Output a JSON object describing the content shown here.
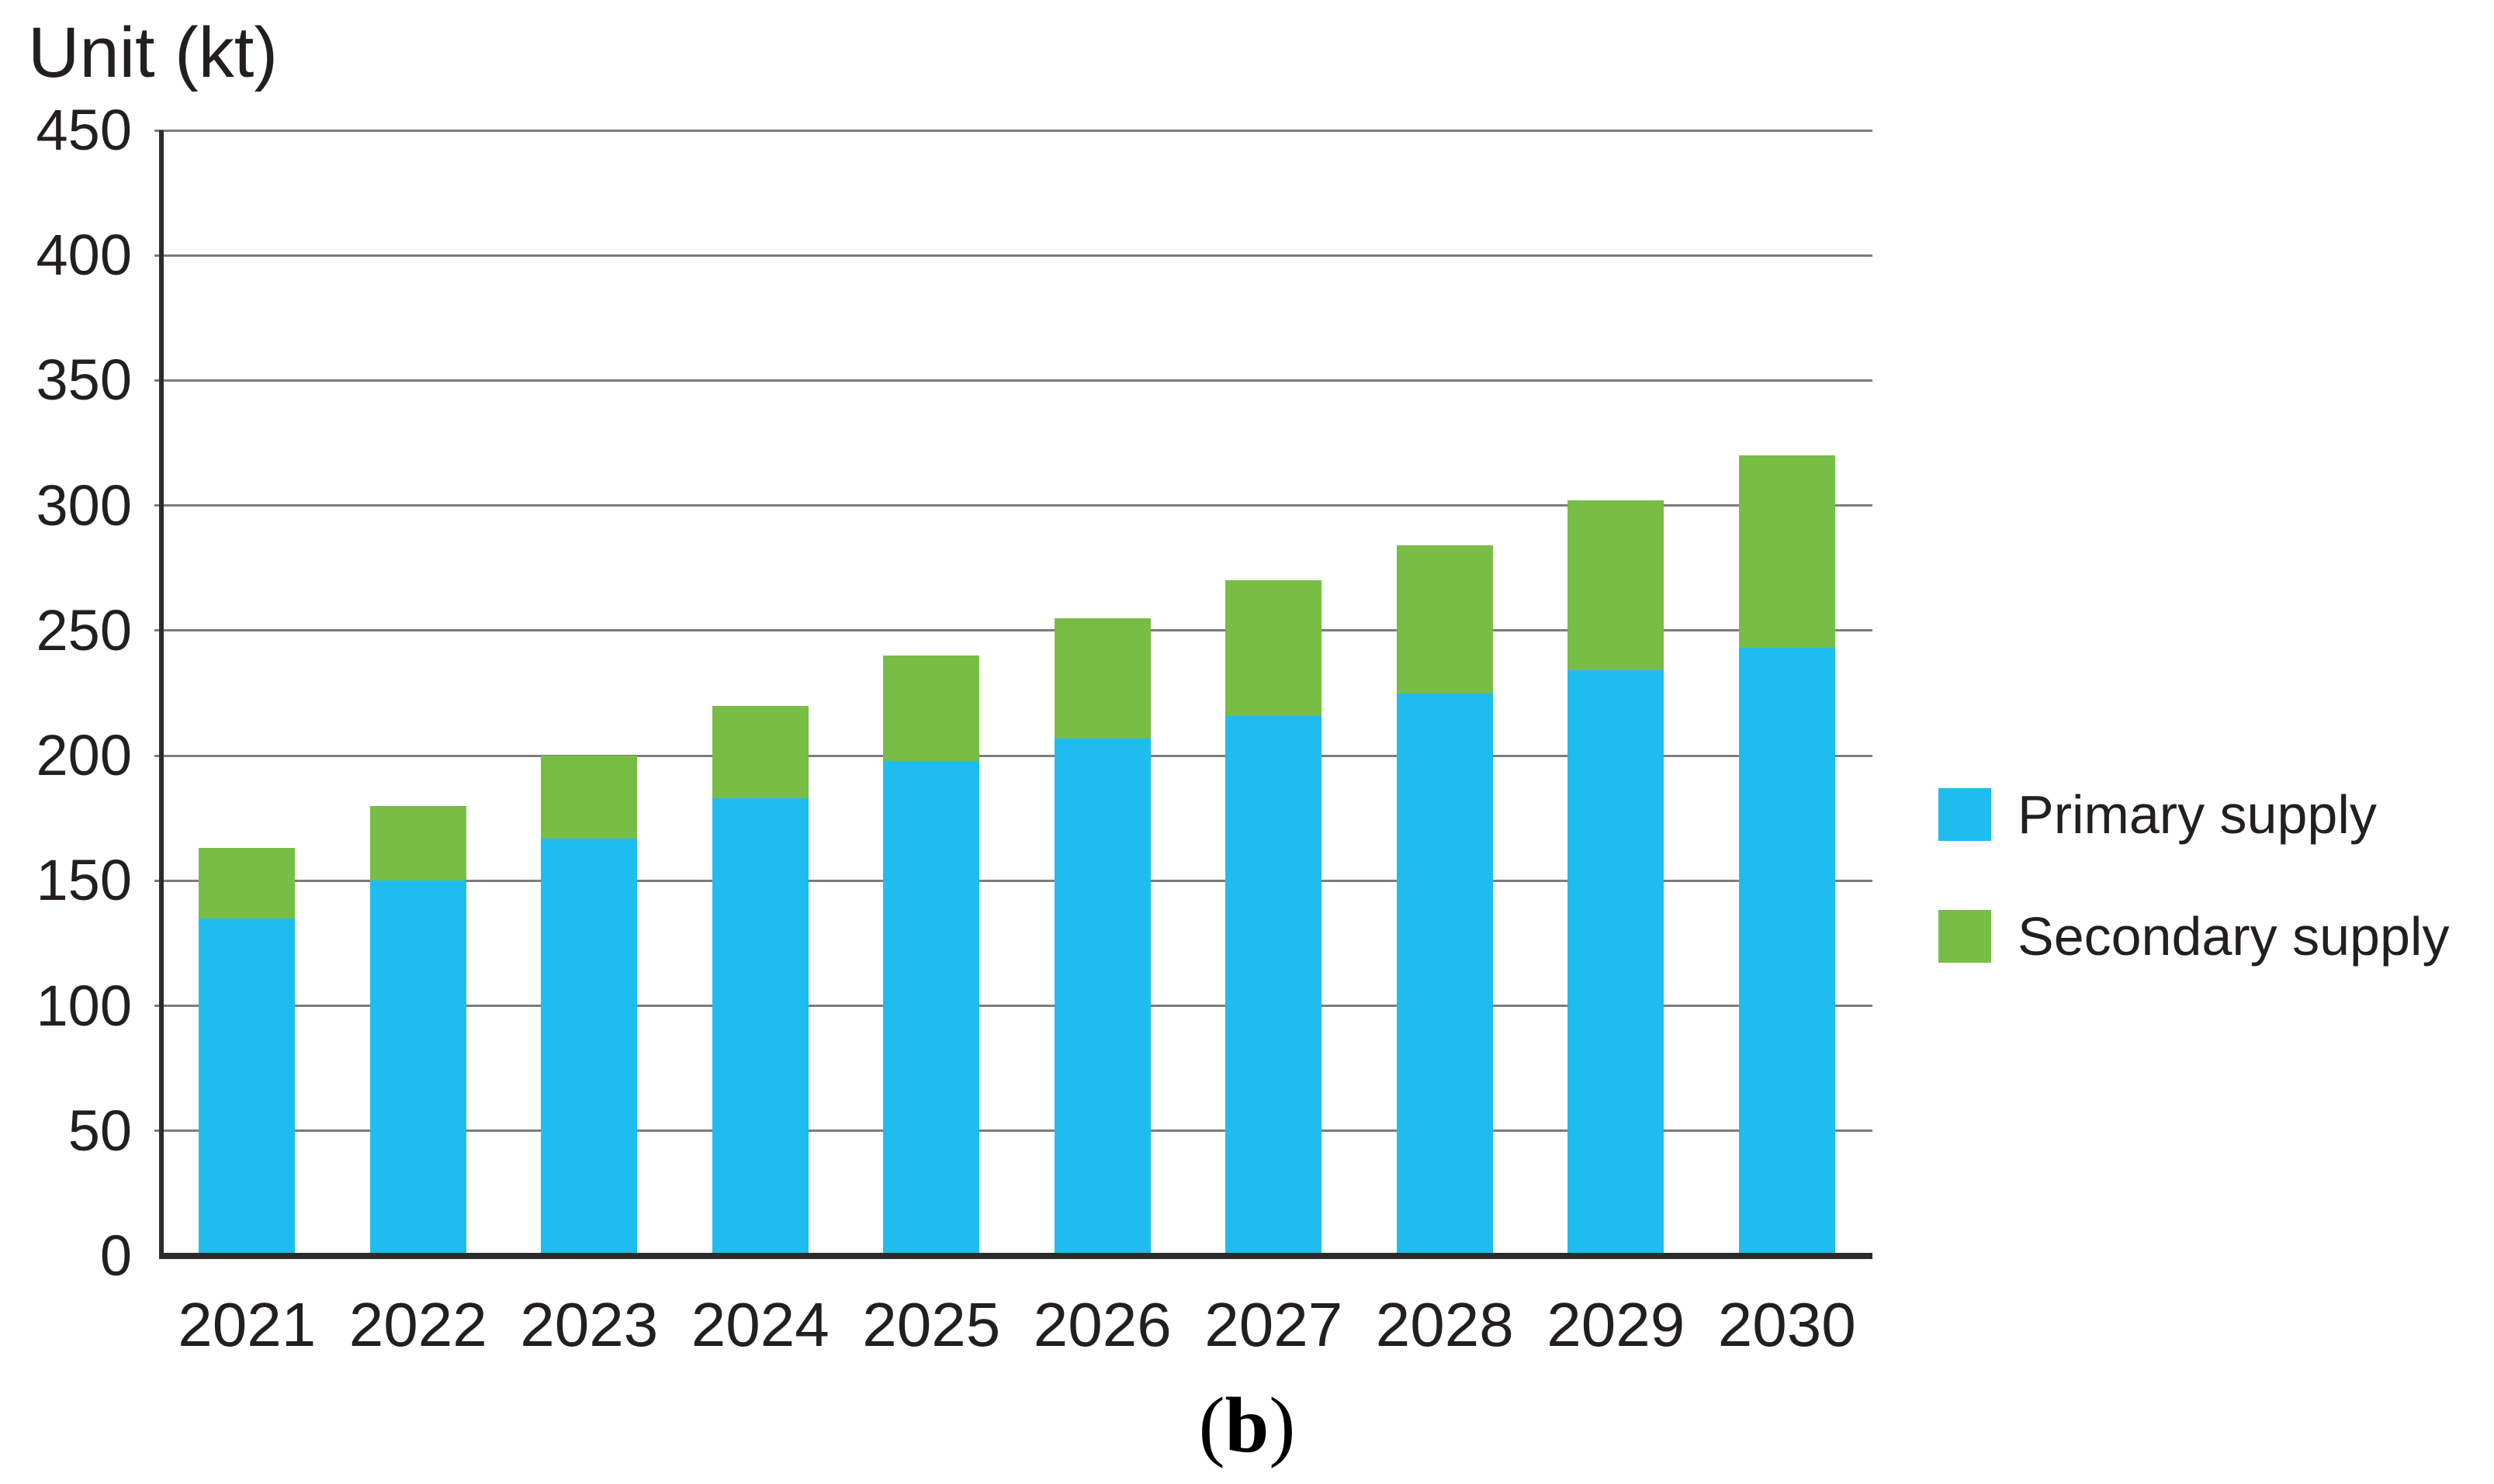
{
  "figure": {
    "title": "Unit (kt)",
    "caption": {
      "open": "(",
      "letter": "b",
      "close": ")"
    }
  },
  "legend": {
    "position": "right",
    "items": [
      {
        "label": "Primary supply",
        "color": "#1FBDEF"
      },
      {
        "label": "Secondary supply",
        "color": "#77BD46"
      }
    ]
  },
  "chart_data": {
    "type": "bar",
    "stacked": true,
    "title": "",
    "ylabel": "Unit (kt)",
    "xlabel": "",
    "categories": [
      "2021",
      "2022",
      "2023",
      "2024",
      "2025",
      "2026",
      "2027",
      "2028",
      "2029",
      "2030"
    ],
    "series": [
      {
        "name": "Primary supply",
        "color": "#1FBDEF",
        "values": [
          135,
          150,
          167,
          183,
          198,
          207,
          216,
          225,
          234,
          243
        ]
      },
      {
        "name": "Secondary supply",
        "color": "#77BD46",
        "values": [
          28,
          30,
          33,
          37,
          42,
          48,
          54,
          59,
          68,
          77
        ]
      }
    ],
    "totals": [
      163,
      180,
      200,
      220,
      240,
      255,
      270,
      284,
      302,
      320
    ],
    "ylim": [
      0,
      450
    ],
    "yticks": [
      0,
      50,
      100,
      150,
      200,
      250,
      300,
      350,
      400,
      450
    ],
    "grid": true,
    "bar_width_ratio": 0.5624,
    "legend_position": "right"
  },
  "colors": {
    "grid": "#7C7C7C",
    "axis": "#2B2B2B",
    "text": "#231F20",
    "background": "#FFFFFF"
  }
}
